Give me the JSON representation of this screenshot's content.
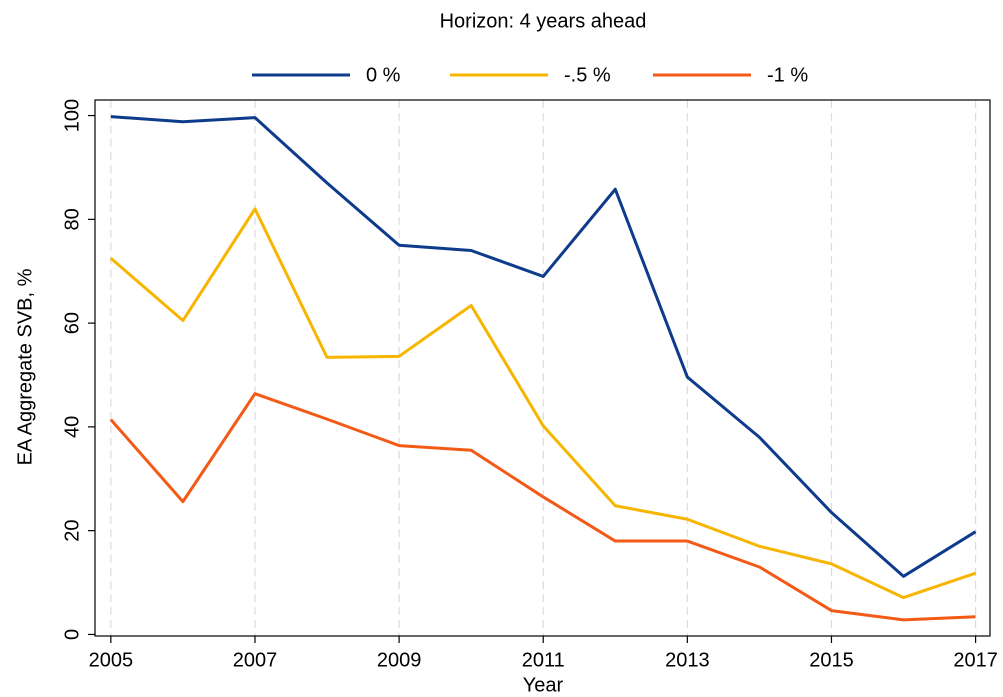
{
  "chart_data": {
    "type": "line",
    "title": "Horizon: 4 years ahead",
    "x_label": "Year",
    "y_label": "EA Aggregate SVB, %",
    "x": [
      2005,
      2006,
      2007,
      2008,
      2009,
      2010,
      2011,
      2012,
      2013,
      2014,
      2015,
      2016,
      2017
    ],
    "series": [
      {
        "name": "0 %",
        "color": "#0e3b8c",
        "values": [
          99.8,
          98.8,
          99.6,
          87,
          75,
          74,
          69,
          85.8,
          49.6,
          38,
          23.5,
          11.2,
          19.8
        ]
      },
      {
        "name": "-.5 %",
        "color": "#f7b500",
        "values": [
          72.5,
          60.5,
          82,
          53.4,
          53.6,
          63.4,
          40.2,
          24.8,
          22.2,
          17,
          13.6,
          7.1,
          11.8
        ]
      },
      {
        "name": "-1 %",
        "color": "#f25a16",
        "values": [
          41.4,
          25.6,
          46.4,
          41.5,
          36.4,
          35.5,
          26.5,
          18,
          18,
          13,
          4.6,
          2.8,
          3.4
        ]
      }
    ],
    "xlim": [
      2004.78,
      2017.2
    ],
    "ylim": [
      -0.3,
      103
    ],
    "xticks": [
      2005,
      2007,
      2009,
      2011,
      2013,
      2015,
      2017
    ],
    "yticks": [
      0,
      20,
      40,
      60,
      80,
      100
    ],
    "grid": "x",
    "legend": "top"
  }
}
